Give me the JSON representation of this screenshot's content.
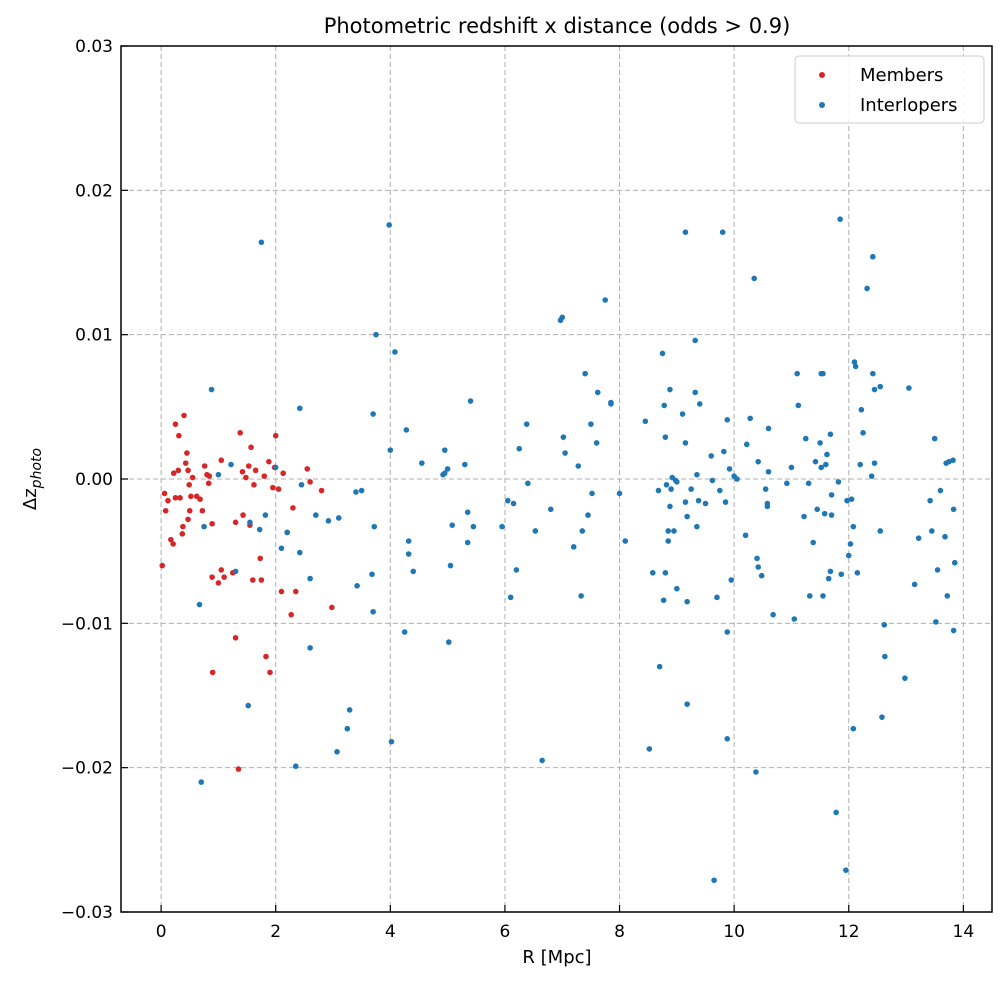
{
  "chart_data": {
    "type": "scatter",
    "title": "Photometric redshift x distance (odds > 0.9)",
    "xlabel": "R [Mpc]",
    "ylabel": "Δz",
    "ylabel_sub": "photo",
    "xlim": [
      -0.7,
      14.5
    ],
    "ylim": [
      -0.03,
      0.03
    ],
    "xticks": [
      0,
      2,
      4,
      6,
      8,
      10,
      12,
      14
    ],
    "yticks": [
      -0.03,
      -0.02,
      -0.01,
      0.0,
      0.01,
      0.02,
      0.03
    ],
    "xtick_labels": [
      "0",
      "2",
      "4",
      "6",
      "8",
      "10",
      "12",
      "14"
    ],
    "ytick_labels": [
      "−0.03",
      "−0.02",
      "−0.01",
      "0.00",
      "0.01",
      "0.02",
      "0.03"
    ],
    "grid": true,
    "legend_position": "top-right",
    "series": [
      {
        "name": "Members",
        "color": "#d62728",
        "points": [
          [
            0.02,
            -0.006
          ],
          [
            0.06,
            -0.001
          ],
          [
            0.08,
            -0.0022
          ],
          [
            0.12,
            -0.0015
          ],
          [
            0.17,
            -0.0042
          ],
          [
            0.21,
            -0.0045
          ],
          [
            0.22,
            0.0004
          ],
          [
            0.25,
            -0.0013
          ],
          [
            0.25,
            0.0038
          ],
          [
            0.3,
            0.0006
          ],
          [
            0.31,
            0.003
          ],
          [
            0.33,
            -0.0013
          ],
          [
            0.37,
            -0.0038
          ],
          [
            0.38,
            -0.0033
          ],
          [
            0.4,
            0.0044
          ],
          [
            0.43,
            0.0011
          ],
          [
            0.45,
            0.0018
          ],
          [
            0.47,
            0.0006
          ],
          [
            0.47,
            -0.0028
          ],
          [
            0.49,
            -0.0004
          ],
          [
            0.5,
            -0.0022
          ],
          [
            0.52,
            -0.0012
          ],
          [
            0.55,
            0.0001
          ],
          [
            0.62,
            -0.0012
          ],
          [
            0.68,
            -0.0014
          ],
          [
            0.72,
            -0.0022
          ],
          [
            0.76,
            0.0009
          ],
          [
            0.8,
            0.0003
          ],
          [
            0.83,
            -0.0003
          ],
          [
            0.84,
            0.0002
          ],
          [
            0.89,
            -0.0031
          ],
          [
            0.89,
            -0.0068
          ],
          [
            0.9,
            -0.0134
          ],
          [
            1.0,
            -0.0072
          ],
          [
            1.05,
            -0.0063
          ],
          [
            1.05,
            0.0013
          ],
          [
            1.1,
            -0.0068
          ],
          [
            1.25,
            -0.0065
          ],
          [
            1.3,
            -0.003
          ],
          [
            1.3,
            -0.011
          ],
          [
            1.35,
            -0.0201
          ],
          [
            1.38,
            0.0032
          ],
          [
            1.42,
            0.0005
          ],
          [
            1.43,
            -0.0025
          ],
          [
            1.48,
            0.0001
          ],
          [
            1.53,
            0.0009
          ],
          [
            1.55,
            -0.0032
          ],
          [
            1.57,
            0.0022
          ],
          [
            1.6,
            -0.007
          ],
          [
            1.62,
            -0.0004
          ],
          [
            1.65,
            0.0006
          ],
          [
            1.73,
            -0.0055
          ],
          [
            1.75,
            -0.007
          ],
          [
            1.8,
            0.0002
          ],
          [
            1.83,
            -0.0123
          ],
          [
            1.88,
            0.0012
          ],
          [
            1.9,
            -0.0134
          ],
          [
            1.95,
            -0.0006
          ],
          [
            1.98,
            0.0008
          ],
          [
            2.0,
            0.003
          ],
          [
            2.05,
            -0.0007
          ],
          [
            2.1,
            -0.0078
          ],
          [
            2.13,
            0.0004
          ],
          [
            2.2,
            -0.0037
          ],
          [
            2.27,
            -0.0094
          ],
          [
            2.3,
            -0.002
          ],
          [
            2.35,
            -0.0078
          ],
          [
            2.55,
            0.0007
          ],
          [
            2.6,
            -0.0002
          ],
          [
            2.8,
            -0.0008
          ],
          [
            2.98,
            -0.0089
          ]
        ]
      },
      {
        "name": "Interlopers",
        "color": "#1f77b4",
        "points": [
          [
            0.67,
            -0.0087
          ],
          [
            0.7,
            -0.021
          ],
          [
            0.75,
            -0.0033
          ],
          [
            0.88,
            0.0062
          ],
          [
            1.0,
            0.0003
          ],
          [
            1.22,
            0.001
          ],
          [
            1.3,
            -0.0064
          ],
          [
            1.52,
            -0.0157
          ],
          [
            1.55,
            -0.003
          ],
          [
            1.72,
            -0.0035
          ],
          [
            1.75,
            0.0164
          ],
          [
            1.82,
            -0.0025
          ],
          [
            2.0,
            0.0008
          ],
          [
            2.1,
            -0.0048
          ],
          [
            2.2,
            -0.0037
          ],
          [
            2.35,
            -0.0199
          ],
          [
            2.42,
            0.0049
          ],
          [
            2.42,
            -0.0051
          ],
          [
            2.45,
            -0.0004
          ],
          [
            2.6,
            -0.0069
          ],
          [
            2.6,
            -0.0117
          ],
          [
            2.7,
            -0.0025
          ],
          [
            2.92,
            -0.0029
          ],
          [
            3.07,
            -0.0189
          ],
          [
            3.1,
            -0.0027
          ],
          [
            3.25,
            -0.0173
          ],
          [
            3.29,
            -0.016
          ],
          [
            3.4,
            -0.0009
          ],
          [
            3.42,
            -0.0074
          ],
          [
            3.5,
            -0.0008
          ],
          [
            3.68,
            -0.0066
          ],
          [
            3.7,
            0.0045
          ],
          [
            3.7,
            -0.0092
          ],
          [
            3.72,
            -0.0033
          ],
          [
            3.75,
            0.01
          ],
          [
            3.98,
            0.0176
          ],
          [
            4.0,
            0.002
          ],
          [
            4.02,
            -0.0182
          ],
          [
            4.08,
            0.0088
          ],
          [
            4.25,
            -0.0106
          ],
          [
            4.28,
            0.0034
          ],
          [
            4.32,
            -0.0043
          ],
          [
            4.32,
            -0.0052
          ],
          [
            4.4,
            -0.0064
          ],
          [
            4.55,
            0.0011
          ],
          [
            4.92,
            0.0003
          ],
          [
            4.95,
            0.0004
          ],
          [
            4.95,
            0.002
          ],
          [
            5.0,
            0.0007
          ],
          [
            5.02,
            -0.0113
          ],
          [
            5.05,
            -0.006
          ],
          [
            5.08,
            -0.0032
          ],
          [
            5.3,
            0.001
          ],
          [
            5.35,
            -0.0023
          ],
          [
            5.35,
            -0.0044
          ],
          [
            5.4,
            0.0054
          ],
          [
            5.45,
            -0.0033
          ],
          [
            5.95,
            -0.0033
          ],
          [
            6.05,
            -0.0015
          ],
          [
            6.1,
            -0.0082
          ],
          [
            6.15,
            -0.0017
          ],
          [
            6.2,
            -0.0063
          ],
          [
            6.25,
            0.0021
          ],
          [
            6.38,
            0.0038
          ],
          [
            6.4,
            -0.0003
          ],
          [
            6.53,
            -0.0036
          ],
          [
            6.65,
            -0.0195
          ],
          [
            6.8,
            -0.0021
          ],
          [
            6.97,
            0.011
          ],
          [
            7.0,
            0.0112
          ],
          [
            7.02,
            0.0029
          ],
          [
            7.05,
            0.0018
          ],
          [
            7.2,
            -0.0047
          ],
          [
            7.28,
            0.0009
          ],
          [
            7.33,
            -0.0081
          ],
          [
            7.35,
            -0.0036
          ],
          [
            7.4,
            0.0073
          ],
          [
            7.45,
            -0.0025
          ],
          [
            7.5,
            0.0038
          ],
          [
            7.52,
            -0.001
          ],
          [
            7.6,
            0.0025
          ],
          [
            7.62,
            0.006
          ],
          [
            7.75,
            0.0124
          ],
          [
            7.85,
            0.0053
          ],
          [
            7.85,
            0.0052
          ],
          [
            8.0,
            -0.001
          ],
          [
            8.1,
            -0.0043
          ],
          [
            8.45,
            0.004
          ],
          [
            8.52,
            -0.0187
          ],
          [
            8.58,
            -0.0065
          ],
          [
            8.68,
            -0.0008
          ],
          [
            8.7,
            -0.013
          ],
          [
            8.75,
            0.0087
          ],
          [
            8.77,
            -0.0084
          ],
          [
            8.78,
            0.0051
          ],
          [
            8.8,
            0.0029
          ],
          [
            8.8,
            -0.0065
          ],
          [
            8.82,
            -0.0004
          ],
          [
            8.85,
            -0.0036
          ],
          [
            8.85,
            -0.0043
          ],
          [
            8.88,
            0.0062
          ],
          [
            8.88,
            -0.0019
          ],
          [
            8.9,
            -0.0007
          ],
          [
            8.92,
            0.0001
          ],
          [
            8.95,
            -0.0036
          ],
          [
            8.98,
            -0.0001
          ],
          [
            9.0,
            -0.0002
          ],
          [
            9.0,
            -0.0076
          ],
          [
            9.1,
            0.0045
          ],
          [
            9.15,
            0.0171
          ],
          [
            9.15,
            0.0025
          ],
          [
            9.15,
            -0.0016
          ],
          [
            9.18,
            -0.0026
          ],
          [
            9.18,
            -0.0085
          ],
          [
            9.18,
            -0.0156
          ],
          [
            9.25,
            -0.0007
          ],
          [
            9.32,
            0.0096
          ],
          [
            9.32,
            0.006
          ],
          [
            9.35,
            -0.0033
          ],
          [
            9.35,
            0.0003
          ],
          [
            9.38,
            -0.0015
          ],
          [
            9.4,
            0.0052
          ],
          [
            9.5,
            -0.0017
          ],
          [
            9.6,
            0.0016
          ],
          [
            9.62,
            -0.0001
          ],
          [
            9.65,
            -0.0278
          ],
          [
            9.7,
            -0.0082
          ],
          [
            9.75,
            -0.0008
          ],
          [
            9.8,
            0.0171
          ],
          [
            9.82,
            0.0019
          ],
          [
            9.85,
            -0.0016
          ],
          [
            9.88,
            0.0041
          ],
          [
            9.88,
            -0.018
          ],
          [
            9.88,
            -0.0106
          ],
          [
            9.92,
            0.0007
          ],
          [
            9.95,
            -0.007
          ],
          [
            10.0,
            0.0002
          ],
          [
            10.05,
            0.0
          ],
          [
            10.2,
            -0.0039
          ],
          [
            10.22,
            0.0024
          ],
          [
            10.28,
            0.0042
          ],
          [
            10.35,
            0.0139
          ],
          [
            10.38,
            -0.0203
          ],
          [
            10.4,
            -0.0055
          ],
          [
            10.42,
            -0.0061
          ],
          [
            10.42,
            0.0012
          ],
          [
            10.48,
            -0.0067
          ],
          [
            10.55,
            -0.0007
          ],
          [
            10.58,
            -0.0017
          ],
          [
            10.58,
            -0.0019
          ],
          [
            10.6,
            0.0035
          ],
          [
            10.6,
            0.0005
          ],
          [
            10.68,
            -0.0094
          ],
          [
            10.92,
            -0.0003
          ],
          [
            11.0,
            0.0008
          ],
          [
            11.05,
            -0.0097
          ],
          [
            11.1,
            0.0073
          ],
          [
            11.12,
            0.0051
          ],
          [
            11.22,
            -0.0026
          ],
          [
            11.25,
            0.0028
          ],
          [
            11.3,
            -0.0003
          ],
          [
            11.32,
            -0.0081
          ],
          [
            11.38,
            -0.0044
          ],
          [
            11.42,
            0.0012
          ],
          [
            11.45,
            -0.0021
          ],
          [
            11.5,
            0.0025
          ],
          [
            11.52,
            0.0073
          ],
          [
            11.52,
            0.0008
          ],
          [
            11.55,
            0.0073
          ],
          [
            11.55,
            -0.0081
          ],
          [
            11.58,
            -0.0024
          ],
          [
            11.6,
            0.001
          ],
          [
            11.62,
            0.0017
          ],
          [
            11.65,
            -0.0069
          ],
          [
            11.68,
            -0.0064
          ],
          [
            11.68,
            0.0031
          ],
          [
            11.7,
            -0.0011
          ],
          [
            11.7,
            -0.0025
          ],
          [
            11.78,
            -0.0231
          ],
          [
            11.82,
            -0.0002
          ],
          [
            11.85,
            0.018
          ],
          [
            11.87,
            -0.0066
          ],
          [
            11.95,
            -0.0271
          ],
          [
            11.97,
            -0.0015
          ],
          [
            12.0,
            -0.0053
          ],
          [
            12.03,
            -0.0045
          ],
          [
            12.05,
            -0.0014
          ],
          [
            12.08,
            -0.0173
          ],
          [
            12.08,
            -0.0033
          ],
          [
            12.1,
            0.0081
          ],
          [
            12.12,
            0.0078
          ],
          [
            12.15,
            -0.0065
          ],
          [
            12.2,
            0.001
          ],
          [
            12.22,
            0.0048
          ],
          [
            12.25,
            0.0032
          ],
          [
            12.32,
            0.0132
          ],
          [
            12.4,
            0.0002
          ],
          [
            12.42,
            0.0154
          ],
          [
            12.42,
            0.0073
          ],
          [
            12.45,
            0.0011
          ],
          [
            12.45,
            0.0062
          ],
          [
            12.55,
            0.0064
          ],
          [
            12.55,
            -0.0036
          ],
          [
            12.58,
            -0.0165
          ],
          [
            12.62,
            -0.0101
          ],
          [
            12.63,
            -0.0123
          ],
          [
            12.98,
            -0.0138
          ],
          [
            13.05,
            0.0063
          ],
          [
            13.15,
            -0.0073
          ],
          [
            13.22,
            -0.0041
          ],
          [
            13.42,
            -0.0015
          ],
          [
            13.45,
            -0.0036
          ],
          [
            13.5,
            0.0028
          ],
          [
            13.52,
            -0.0099
          ],
          [
            13.55,
            -0.0063
          ],
          [
            13.6,
            -0.0008
          ],
          [
            13.68,
            -0.004
          ],
          [
            13.7,
            0.0011
          ],
          [
            13.72,
            -0.0081
          ],
          [
            13.75,
            0.0012
          ],
          [
            13.82,
            0.0013
          ],
          [
            13.83,
            -0.0105
          ],
          [
            13.83,
            -0.0021
          ],
          [
            13.85,
            -0.0058
          ]
        ]
      }
    ]
  }
}
